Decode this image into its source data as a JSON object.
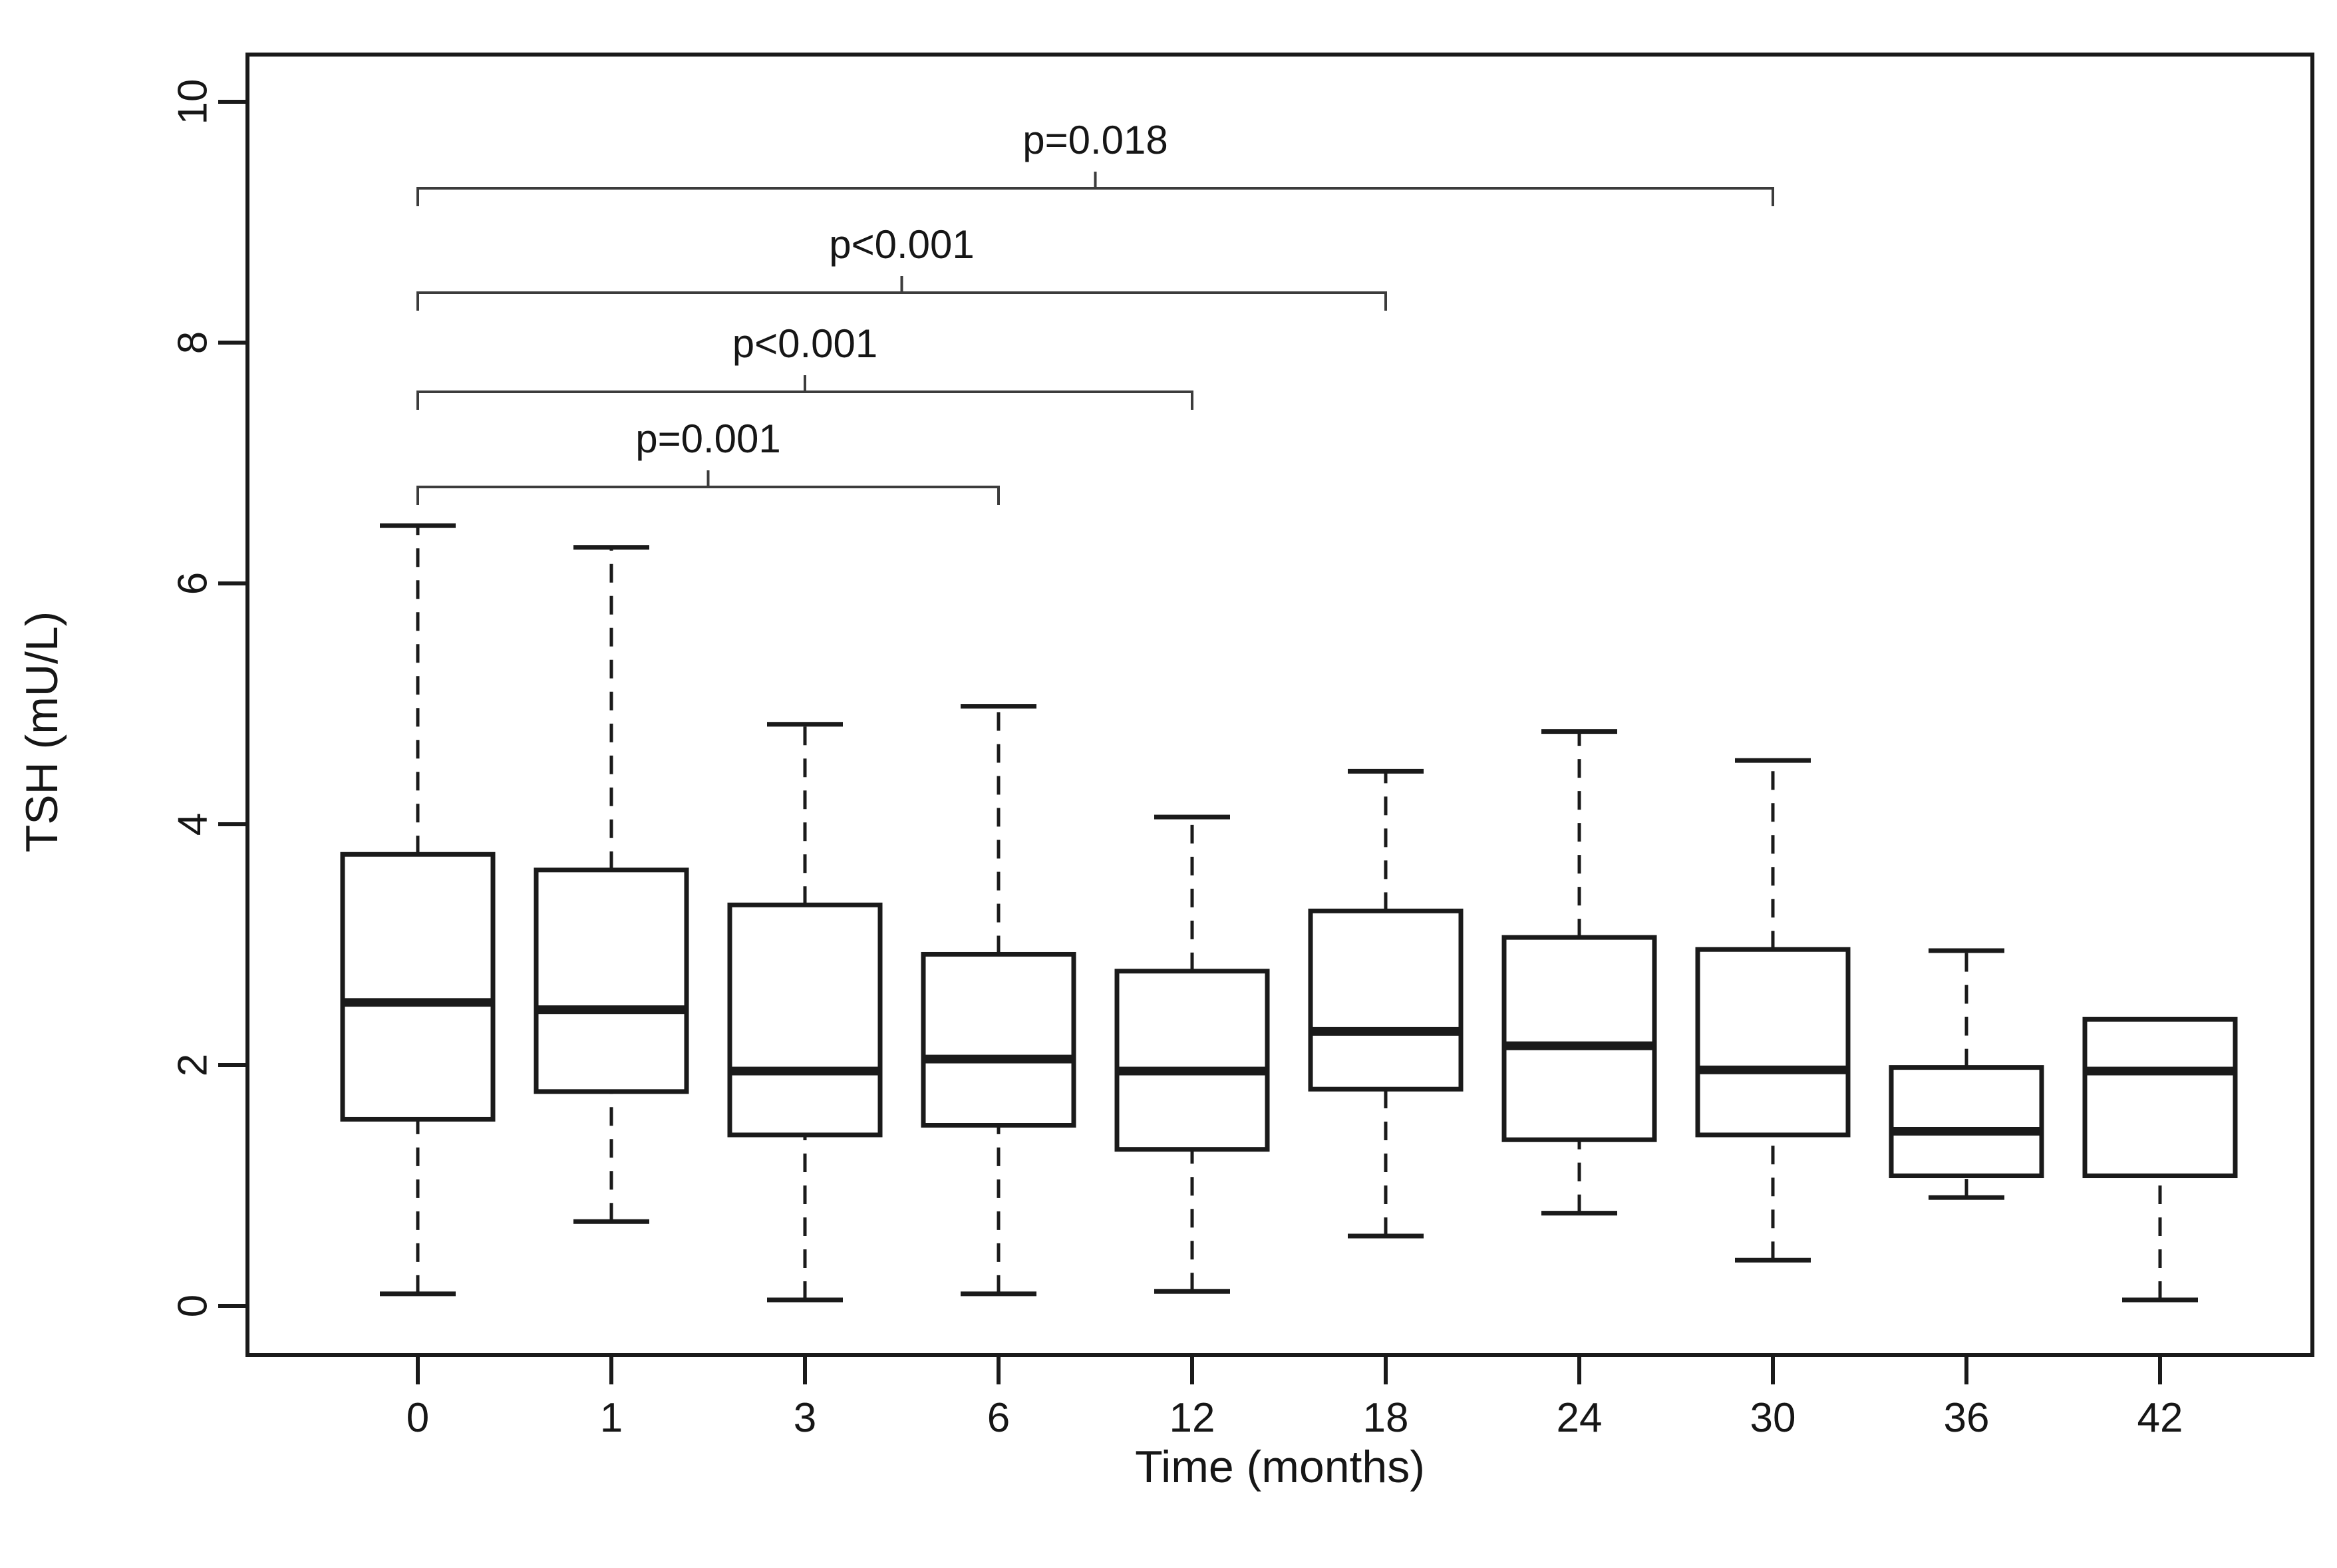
{
  "page": {
    "background": "#ffffff",
    "foreground": "#161616"
  },
  "chart_data": {
    "type": "boxplot",
    "title": "",
    "xlabel": "Time (months)",
    "ylabel": "TSH (mU/L)",
    "categories": [
      "0",
      "1",
      "3",
      "6",
      "12",
      "18",
      "24",
      "30",
      "36",
      "42"
    ],
    "y_ticks": [
      0,
      2,
      4,
      6,
      8,
      10
    ],
    "ylim": [
      0,
      10
    ],
    "grid": false,
    "legend_position": "none",
    "line_color": "#1a1a1a",
    "bracket_color": "#3c3c3c",
    "box_fill": "#ffffff",
    "whisker_style": "dashed",
    "boxes": [
      {
        "category": "0",
        "low": 0.1,
        "q1": 1.55,
        "median": 2.52,
        "q3": 3.75,
        "high": 6.48
      },
      {
        "category": "1",
        "low": 0.7,
        "q1": 1.78,
        "median": 2.46,
        "q3": 3.62,
        "high": 6.3
      },
      {
        "category": "3",
        "low": 0.05,
        "q1": 1.42,
        "median": 1.95,
        "q3": 3.33,
        "high": 4.83
      },
      {
        "category": "6",
        "low": 0.1,
        "q1": 1.5,
        "median": 2.05,
        "q3": 2.92,
        "high": 4.98
      },
      {
        "category": "12",
        "low": 0.12,
        "q1": 1.3,
        "median": 1.95,
        "q3": 2.78,
        "high": 4.06
      },
      {
        "category": "18",
        "low": 0.58,
        "q1": 1.8,
        "median": 2.28,
        "q3": 3.28,
        "high": 4.44
      },
      {
        "category": "24",
        "low": 0.77,
        "q1": 1.38,
        "median": 2.16,
        "q3": 3.06,
        "high": 4.77
      },
      {
        "category": "30",
        "low": 0.38,
        "q1": 1.42,
        "median": 1.96,
        "q3": 2.96,
        "high": 4.53
      },
      {
        "category": "36",
        "low": 0.9,
        "q1": 1.08,
        "median": 1.45,
        "q3": 1.98,
        "high": 2.95
      },
      {
        "category": "42",
        "low": 0.05,
        "q1": 1.08,
        "median": 1.95,
        "q3": 2.38,
        "high": null
      }
    ],
    "annotations": [
      {
        "label": "p=0.018",
        "from": "0",
        "to": "30"
      },
      {
        "label": "p<0.001",
        "from": "0",
        "to": "18"
      },
      {
        "label": "p<0.001",
        "from": "0",
        "to": "12"
      },
      {
        "label": "p=0.001",
        "from": "0",
        "to": "6"
      }
    ]
  }
}
